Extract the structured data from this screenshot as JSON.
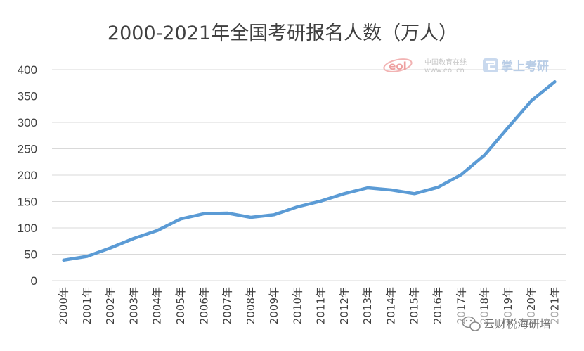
{
  "chart_data": {
    "type": "line",
    "title": "2000-2021年全国考研报名人数（万人）",
    "xlabel": "",
    "ylabel": "",
    "categories": [
      "2000年",
      "2001年",
      "2002年",
      "2003年",
      "2004年",
      "2005年",
      "2006年",
      "2007年",
      "2008年",
      "2009年",
      "2010年",
      "2011年",
      "2012年",
      "2013年",
      "2014年",
      "2015年",
      "2016年",
      "2017年",
      "2018年",
      "2019年",
      "2020年",
      "2021年"
    ],
    "series": [
      {
        "values": [
          39,
          46,
          62,
          80,
          95,
          117,
          127,
          128,
          120,
          125,
          140,
          151,
          165,
          176,
          172,
          165,
          177,
          201,
          238,
          290,
          341,
          377
        ],
        "color": "#5b9bd5"
      }
    ],
    "ylim": [
      0,
      400
    ],
    "yticks": [
      0,
      50,
      100,
      150,
      200,
      250,
      300,
      350,
      400
    ],
    "grid": true,
    "legend": "none"
  },
  "watermark": {
    "eol_logo": "eol",
    "eol_name": "中国教育在线",
    "eol_url": "www.eol.cn",
    "app_icon": "app-icon",
    "app_name": "掌上考研",
    "wechat_icon": "wechat-icon",
    "wechat_account": "云财税海研培"
  }
}
